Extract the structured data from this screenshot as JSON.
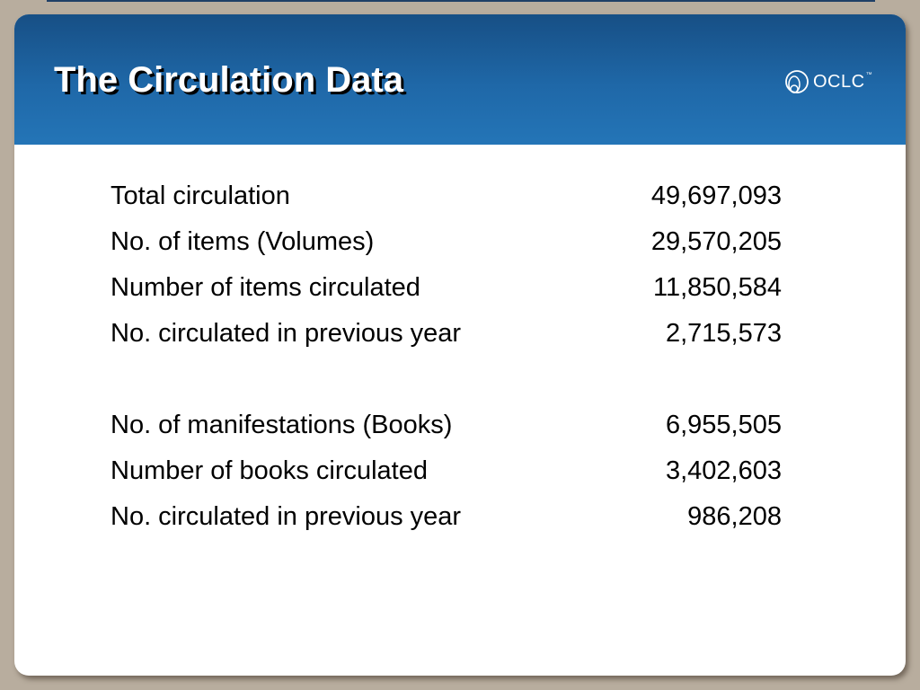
{
  "slide": {
    "title": "The Circulation Data",
    "logo": {
      "icon": "oclc-globe-logo",
      "text": "OCLC",
      "trademark": "™"
    }
  },
  "stats": {
    "group1": [
      {
        "label": "Total circulation",
        "value": "49,697,093"
      },
      {
        "label": "No. of items (Volumes)",
        "value": "29,570,205"
      },
      {
        "label": "Number of items circulated",
        "value": "11,850,584"
      },
      {
        "label": "No. circulated in previous year",
        "value": "2,715,573"
      }
    ],
    "group2": [
      {
        "label": "No. of manifestations (Books)",
        "value": "6,955,505"
      },
      {
        "label": "Number of books circulated",
        "value": "3,402,603"
      },
      {
        "label": "No. circulated in previous year",
        "value": "986,208"
      }
    ]
  },
  "colors": {
    "banner": "#1f68a8",
    "frame": "#b8ad9e",
    "slide_background": "#ffffff",
    "text": "#000000"
  }
}
